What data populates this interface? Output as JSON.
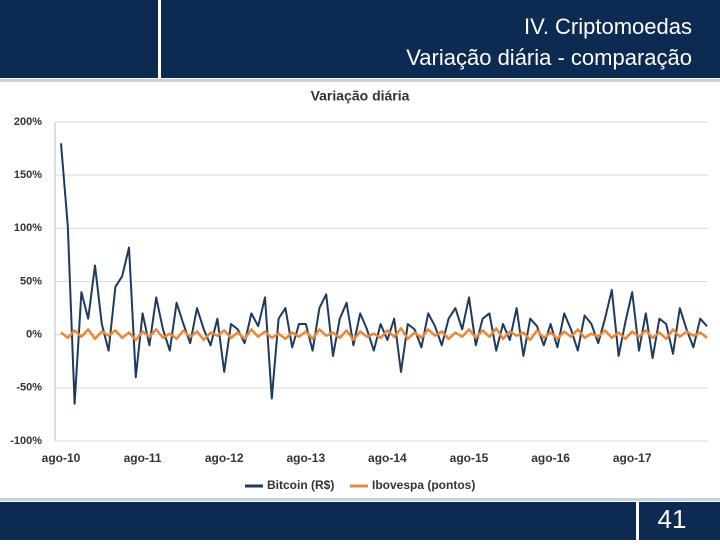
{
  "header": {
    "title_line1": "IV. Criptomoedas",
    "title_line2": "Variação diária - comparação"
  },
  "page_number": "41",
  "chart_data": {
    "type": "line",
    "title": "Variação diária",
    "categories": [
      "ago-10",
      null,
      null,
      null,
      null,
      null,
      null,
      null,
      null,
      null,
      null,
      null,
      "ago-11",
      null,
      null,
      null,
      null,
      null,
      null,
      null,
      null,
      null,
      null,
      null,
      "ago-12",
      null,
      null,
      null,
      null,
      null,
      null,
      null,
      null,
      null,
      null,
      null,
      "ago-13",
      null,
      null,
      null,
      null,
      null,
      null,
      null,
      null,
      null,
      null,
      null,
      "ago-14",
      null,
      null,
      null,
      null,
      null,
      null,
      null,
      null,
      null,
      null,
      null,
      "ago-15",
      null,
      null,
      null,
      null,
      null,
      null,
      null,
      null,
      null,
      null,
      null,
      "ago-16",
      null,
      null,
      null,
      null,
      null,
      null,
      null,
      null,
      null,
      null,
      null,
      "ago-17",
      null,
      null,
      null,
      null,
      null,
      null,
      null,
      null,
      null,
      null,
      null
    ],
    "series": [
      {
        "name": "Bitcoin (R$)",
        "color": "#1f3a5f",
        "values": [
          180,
          102,
          -65,
          40,
          15,
          65,
          10,
          -15,
          45,
          55,
          82,
          -40,
          20,
          -10,
          35,
          5,
          -15,
          30,
          10,
          -8,
          25,
          5,
          -10,
          15,
          -35,
          10,
          5,
          -8,
          20,
          8,
          35,
          -60,
          15,
          25,
          -12,
          10,
          10,
          -15,
          25,
          38,
          -20,
          15,
          30,
          -10,
          20,
          5,
          -15,
          10,
          -5,
          15,
          -35,
          10,
          5,
          -12,
          20,
          8,
          -10,
          15,
          25,
          5,
          35,
          -10,
          15,
          20,
          -15,
          10,
          -5,
          25,
          -20,
          15,
          8,
          -10,
          10,
          -12,
          20,
          5,
          -15,
          18,
          10,
          -8,
          15,
          42,
          -20,
          12,
          40,
          -15,
          20,
          -22,
          15,
          10,
          -18,
          25,
          5,
          -12,
          15,
          8
        ]
      },
      {
        "name": "Ibovespa (pontos)",
        "color": "#e8883a",
        "values": [
          2,
          -3,
          4,
          -2,
          5,
          -4,
          3,
          -1,
          4,
          -3,
          2,
          -5,
          3,
          -2,
          5,
          -3,
          1,
          -4,
          4,
          -2,
          3,
          -5,
          2,
          -1,
          4,
          -3,
          2,
          -4,
          5,
          -2,
          3,
          -3,
          1,
          -4,
          2,
          -2,
          3,
          -4,
          5,
          -1,
          2,
          -3,
          4,
          -5,
          3,
          -2,
          1,
          -3,
          4,
          -2,
          6,
          -4,
          2,
          -3,
          5,
          -1,
          3,
          -4,
          2,
          -2,
          5,
          -3,
          4,
          -2,
          6,
          -4,
          3,
          -1,
          2,
          -5,
          4,
          -3,
          2,
          -4,
          3,
          -2,
          5,
          -3,
          1,
          -2,
          4,
          -3,
          2,
          -4,
          3,
          -2,
          4,
          -3,
          2,
          -4,
          5,
          -2,
          3,
          -1,
          2,
          -3
        ]
      }
    ],
    "ylim": [
      -100,
      200
    ],
    "yticks": [
      {
        "value": -100,
        "label": "-100%"
      },
      {
        "value": -50,
        "label": "-50%"
      },
      {
        "value": 0,
        "label": "0%"
      },
      {
        "value": 50,
        "label": "50%"
      },
      {
        "value": 100,
        "label": "100%"
      },
      {
        "value": 150,
        "label": "150%"
      },
      {
        "value": 200,
        "label": "200%"
      }
    ],
    "grid": true,
    "legend": "bottom"
  }
}
